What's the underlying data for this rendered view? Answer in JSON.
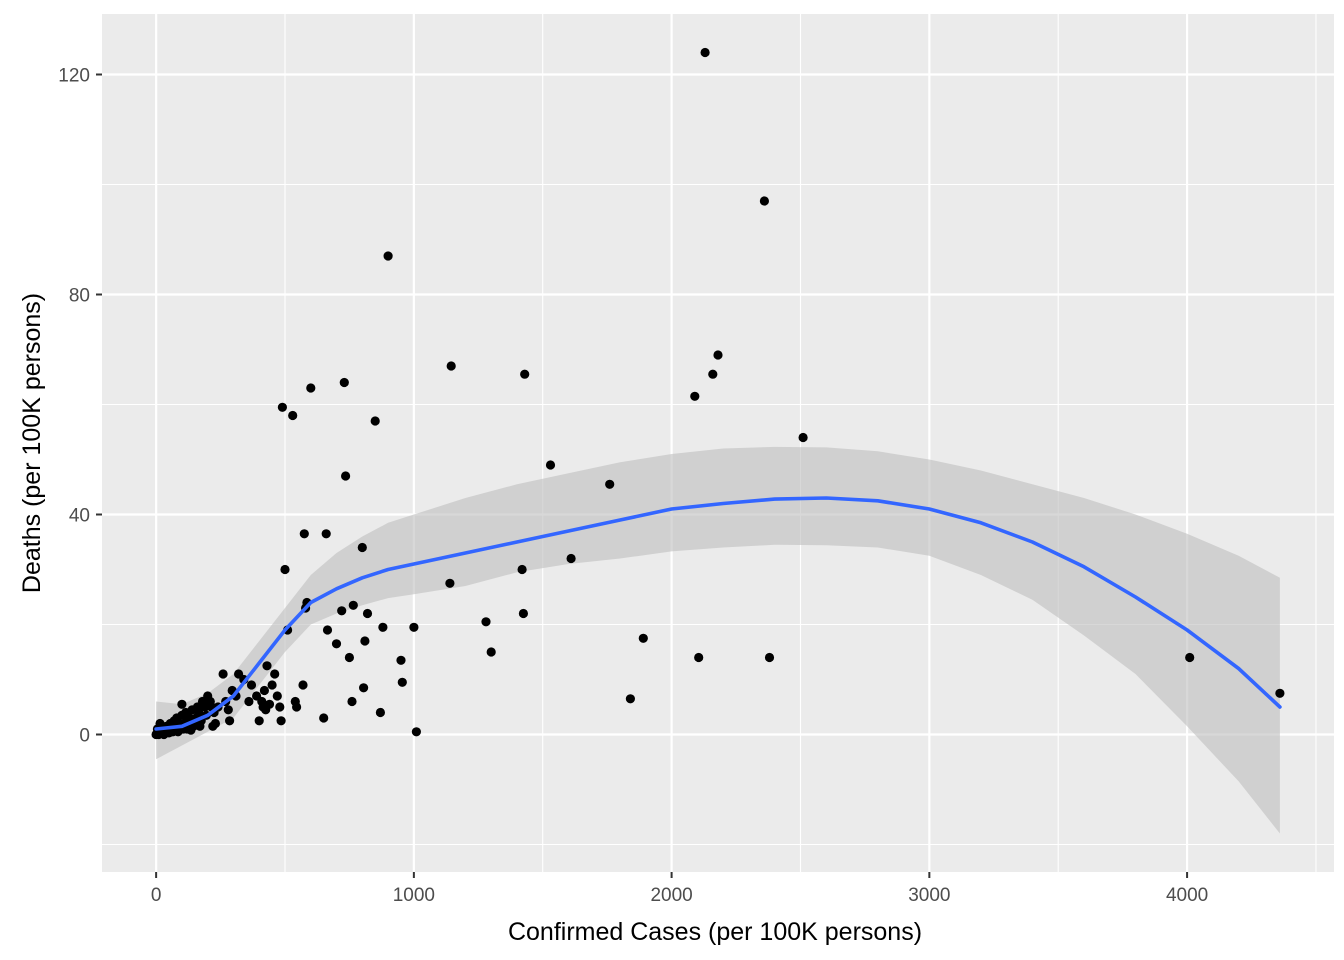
{
  "chart_data": {
    "type": "scatter",
    "title": "",
    "xlabel": "Confirmed Cases (per 100K persons)",
    "ylabel": "Deaths (per 100K persons)",
    "xlim": [
      -210,
      4570
    ],
    "ylim": [
      -25,
      131
    ],
    "x_ticks": [
      0,
      1000,
      2000,
      3000,
      4000
    ],
    "x_tick_labels": [
      "0",
      "1000",
      "2000",
      "3000",
      "4000"
    ],
    "y_ticks": [
      0,
      40,
      80,
      120
    ],
    "y_tick_labels": [
      "0",
      "40",
      "80",
      "120"
    ],
    "grid": true,
    "colors": {
      "panel": "#EBEBEB",
      "grid": "#FFFFFF",
      "points": "#000000",
      "smooth_line": "#3366FF",
      "ribbon": "#BEBEBE",
      "tick_text": "#4D4D4D",
      "tick_marks": "#333333"
    },
    "points": [
      [
        0,
        0
      ],
      [
        5,
        1
      ],
      [
        10,
        0
      ],
      [
        15,
        2
      ],
      [
        20,
        0.5
      ],
      [
        25,
        1
      ],
      [
        30,
        0
      ],
      [
        35,
        0.5
      ],
      [
        40,
        1.5
      ],
      [
        45,
        1
      ],
      [
        50,
        0.3
      ],
      [
        55,
        2
      ],
      [
        60,
        1
      ],
      [
        65,
        0.5
      ],
      [
        70,
        2.5
      ],
      [
        75,
        1
      ],
      [
        80,
        3
      ],
      [
        85,
        0.5
      ],
      [
        90,
        2
      ],
      [
        95,
        1.5
      ],
      [
        100,
        3.5
      ],
      [
        100,
        5.5
      ],
      [
        105,
        1
      ],
      [
        110,
        2
      ],
      [
        115,
        4
      ],
      [
        120,
        1
      ],
      [
        125,
        2.5
      ],
      [
        130,
        3
      ],
      [
        135,
        0.8
      ],
      [
        140,
        4.5
      ],
      [
        145,
        1.5
      ],
      [
        150,
        2
      ],
      [
        155,
        3
      ],
      [
        160,
        5
      ],
      [
        165,
        4
      ],
      [
        170,
        1.5
      ],
      [
        175,
        2.5
      ],
      [
        180,
        6
      ],
      [
        190,
        5
      ],
      [
        195,
        3.5
      ],
      [
        200,
        7
      ],
      [
        210,
        6
      ],
      [
        215,
        5
      ],
      [
        220,
        1.5
      ],
      [
        225,
        4
      ],
      [
        230,
        2
      ],
      [
        240,
        5
      ],
      [
        260,
        11
      ],
      [
        270,
        6
      ],
      [
        280,
        4.5
      ],
      [
        285,
        2.5
      ],
      [
        295,
        8
      ],
      [
        310,
        7
      ],
      [
        320,
        11
      ],
      [
        340,
        10
      ],
      [
        360,
        6
      ],
      [
        370,
        9
      ],
      [
        390,
        7
      ],
      [
        400,
        2.5
      ],
      [
        410,
        6
      ],
      [
        415,
        5
      ],
      [
        420,
        8
      ],
      [
        425,
        4.5
      ],
      [
        430,
        12.5
      ],
      [
        440,
        5.5
      ],
      [
        450,
        9
      ],
      [
        460,
        11
      ],
      [
        470,
        7
      ],
      [
        480,
        5
      ],
      [
        485,
        2.5
      ],
      [
        490,
        59.5
      ],
      [
        500,
        30
      ],
      [
        510,
        19
      ],
      [
        530,
        58
      ],
      [
        540,
        6
      ],
      [
        545,
        5
      ],
      [
        570,
        9
      ],
      [
        575,
        36.5
      ],
      [
        580,
        23
      ],
      [
        585,
        24
      ],
      [
        600,
        63
      ],
      [
        650,
        3
      ],
      [
        660,
        36.5
      ],
      [
        665,
        19
      ],
      [
        700,
        16.5
      ],
      [
        720,
        22.5
      ],
      [
        730,
        64
      ],
      [
        735,
        47
      ],
      [
        750,
        14
      ],
      [
        760,
        6
      ],
      [
        765,
        23.5
      ],
      [
        800,
        34
      ],
      [
        805,
        8.5
      ],
      [
        810,
        17
      ],
      [
        820,
        22
      ],
      [
        850,
        57
      ],
      [
        870,
        4
      ],
      [
        880,
        19.5
      ],
      [
        900,
        87
      ],
      [
        950,
        13.5
      ],
      [
        955,
        9.5
      ],
      [
        1000,
        19.5
      ],
      [
        1010,
        0.5
      ],
      [
        1140,
        27.5
      ],
      [
        1145,
        67
      ],
      [
        1280,
        20.5
      ],
      [
        1300,
        15
      ],
      [
        1420,
        30
      ],
      [
        1425,
        22
      ],
      [
        1430,
        65.5
      ],
      [
        1530,
        49
      ],
      [
        1610,
        32
      ],
      [
        1760,
        45.5
      ],
      [
        1840,
        6.5
      ],
      [
        1890,
        17.5
      ],
      [
        2090,
        61.5
      ],
      [
        2105,
        14
      ],
      [
        2130,
        124
      ],
      [
        2160,
        65.5
      ],
      [
        2180,
        69
      ],
      [
        2360,
        97
      ],
      [
        2380,
        14
      ],
      [
        2510,
        54
      ],
      [
        4010,
        14
      ],
      [
        4360,
        7.5
      ]
    ],
    "smooth_fit": {
      "method": "loess",
      "series": [
        {
          "name": "fit",
          "x": [
            0,
            100,
            200,
            300,
            400,
            500,
            600,
            700,
            800,
            900,
            1000,
            1200,
            1400,
            1600,
            1800,
            2000,
            2200,
            2400,
            2600,
            2800,
            3000,
            3200,
            3400,
            3600,
            3800,
            4000,
            4200,
            4360
          ],
          "y": [
            1,
            1.5,
            3.5,
            7,
            13,
            19,
            24,
            26.5,
            28.5,
            30,
            31,
            33,
            35,
            37,
            39,
            41,
            42,
            42.8,
            43,
            42.5,
            41,
            38.5,
            35,
            30.5,
            25,
            19,
            12,
            5
          ]
        },
        {
          "name": "upper",
          "x": [
            0,
            100,
            200,
            300,
            400,
            500,
            600,
            700,
            800,
            900,
            1000,
            1200,
            1400,
            1600,
            1800,
            2000,
            2200,
            2400,
            2600,
            2800,
            3000,
            3200,
            3400,
            3600,
            3800,
            4000,
            4200,
            4360
          ],
          "y": [
            6,
            5.5,
            7.5,
            11,
            17,
            23,
            29,
            33,
            36,
            38.5,
            40,
            43,
            45.5,
            47.5,
            49.5,
            51,
            52,
            52.3,
            52.2,
            51.5,
            50,
            48,
            45.5,
            43,
            40,
            36.5,
            32.5,
            28.5
          ]
        },
        {
          "name": "lower",
          "x": [
            0,
            100,
            200,
            300,
            400,
            500,
            600,
            700,
            800,
            900,
            1000,
            1200,
            1400,
            1600,
            1800,
            2000,
            2200,
            2400,
            2600,
            2800,
            3000,
            3200,
            3400,
            3600,
            3800,
            4000,
            4200,
            4360
          ],
          "y": [
            -4.5,
            -2,
            0.5,
            3,
            9,
            15,
            20,
            22,
            23.5,
            24.8,
            25.5,
            27,
            29.5,
            31,
            32,
            33.3,
            34,
            34.5,
            34.4,
            34,
            32.5,
            29,
            24.5,
            18,
            11,
            1.5,
            -8.5,
            -18
          ]
        }
      ]
    }
  }
}
